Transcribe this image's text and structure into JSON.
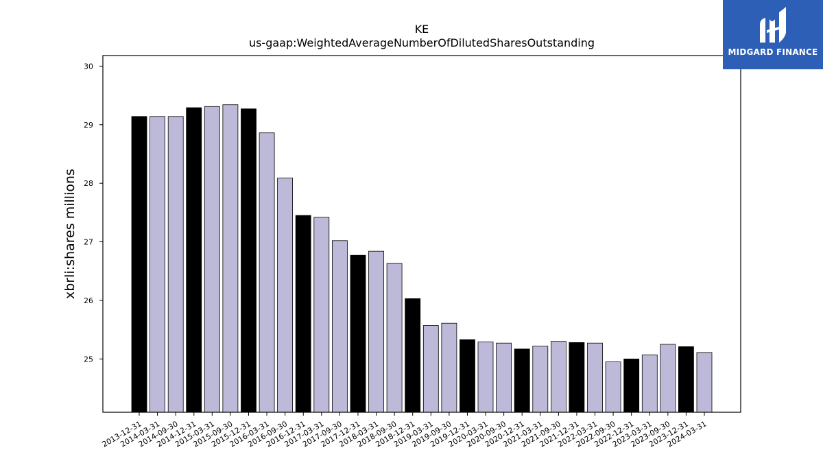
{
  "brand": {
    "name": "MIDGARD FINANCE",
    "bg_color": "#2e5fb6",
    "logo_icon": "midgard-logo-icon"
  },
  "chart_data": {
    "type": "bar",
    "title": "KE",
    "subtitle": "us-gaap:WeightedAverageNumberOfDilutedSharesOutstanding",
    "xlabel": "",
    "ylabel": "xbrli:shares millions",
    "ylim": [
      24.09,
      30.18
    ],
    "yticks": [
      25,
      26,
      27,
      28,
      29,
      30
    ],
    "grid": false,
    "colors": {
      "year_end": "#000000",
      "quarter": "#bdbad9",
      "edge": "#000000"
    },
    "categories": [
      "2013-12-31",
      "2014-03-31",
      "2014-09-30",
      "2014-12-31",
      "2015-03-31",
      "2015-09-30",
      "2015-12-31",
      "2016-03-31",
      "2016-09-30",
      "2016-12-31",
      "2017-03-31",
      "2017-09-30",
      "2017-12-31",
      "2018-03-31",
      "2018-09-30",
      "2018-12-31",
      "2019-03-31",
      "2019-09-30",
      "2019-12-31",
      "2020-03-31",
      "2020-09-30",
      "2020-12-31",
      "2021-03-31",
      "2021-09-30",
      "2021-12-31",
      "2022-03-31",
      "2022-09-30",
      "2022-12-31",
      "2023-03-31",
      "2023-09-30",
      "2023-12-31",
      "2024-03-31"
    ],
    "values": [
      29.14,
      29.14,
      29.14,
      29.29,
      29.31,
      29.34,
      29.27,
      28.86,
      28.09,
      27.45,
      27.42,
      27.02,
      26.77,
      26.84,
      26.63,
      26.03,
      25.57,
      25.61,
      25.33,
      25.29,
      25.27,
      25.17,
      25.22,
      25.3,
      25.28,
      25.27,
      24.95,
      25.0,
      25.07,
      25.25,
      25.21,
      25.11
    ]
  }
}
